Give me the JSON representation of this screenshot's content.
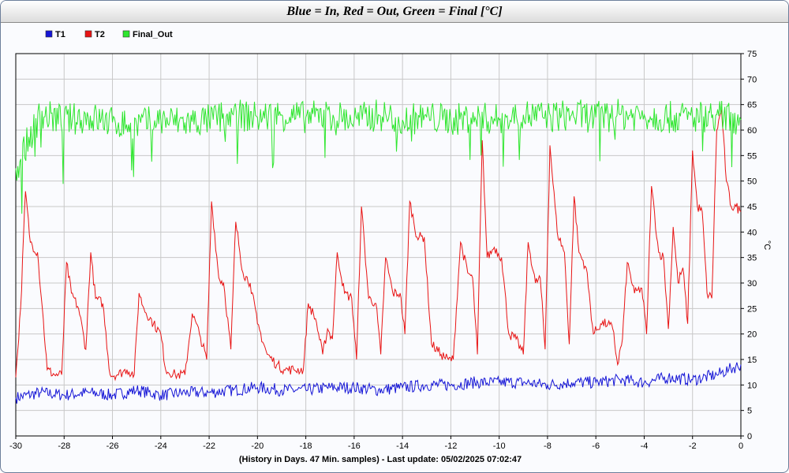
{
  "chart_data": {
    "type": "line",
    "title": "Blue = In,  Red = Out, Green = Final [°C]",
    "xlabel": "(History in Days. 47 Min. samples) - Last update: 05/02/2025 07:02:47",
    "ylabel": "°C",
    "xlim": [
      -30,
      0
    ],
    "ylim": [
      0,
      75
    ],
    "x_ticks": [
      -30,
      -28,
      -26,
      -24,
      -22,
      -20,
      -18,
      -16,
      -14,
      -12,
      -10,
      -8,
      -6,
      -4,
      -2,
      0
    ],
    "y_ticks": [
      0,
      5,
      10,
      15,
      20,
      25,
      30,
      35,
      40,
      45,
      50,
      55,
      60,
      65,
      70,
      75
    ],
    "grid": true,
    "legend_position": "top-left",
    "series": [
      {
        "name": "T1",
        "color": "#1515d6",
        "points": [
          [
            -30,
            7.5
          ],
          [
            -29,
            8.5
          ],
          [
            -28,
            8.0
          ],
          [
            -27,
            8.5
          ],
          [
            -26,
            8.0
          ],
          [
            -25,
            9.0
          ],
          [
            -24,
            8.0
          ],
          [
            -23,
            8.5
          ],
          [
            -22,
            8.5
          ],
          [
            -21,
            9.0
          ],
          [
            -20,
            9.5
          ],
          [
            -19,
            9.0
          ],
          [
            -18,
            9.0
          ],
          [
            -17,
            9.5
          ],
          [
            -16,
            9.5
          ],
          [
            -15,
            9.0
          ],
          [
            -14,
            9.5
          ],
          [
            -13,
            10.0
          ],
          [
            -12,
            10.0
          ],
          [
            -11,
            10.5
          ],
          [
            -10,
            10.5
          ],
          [
            -9,
            10.5
          ],
          [
            -8,
            10.0
          ],
          [
            -7,
            10.5
          ],
          [
            -6,
            10.5
          ],
          [
            -5,
            11.0
          ],
          [
            -4,
            10.5
          ],
          [
            -3,
            11.5
          ],
          [
            -2,
            11.0
          ],
          [
            -1,
            12.0
          ],
          [
            -0.5,
            13.0
          ],
          [
            0,
            14.0
          ]
        ]
      },
      {
        "name": "T2",
        "color": "#e81414",
        "points": [
          [
            -30,
            11.5
          ],
          [
            -29.8,
            25
          ],
          [
            -29.6,
            48
          ],
          [
            -29.4,
            38
          ],
          [
            -29.1,
            36
          ],
          [
            -28.9,
            25
          ],
          [
            -28.7,
            13
          ],
          [
            -28.4,
            12
          ],
          [
            -28.1,
            12
          ],
          [
            -27.9,
            34
          ],
          [
            -27.7,
            28
          ],
          [
            -27.4,
            25
          ],
          [
            -27.1,
            17
          ],
          [
            -26.9,
            36
          ],
          [
            -26.7,
            27
          ],
          [
            -26.4,
            26
          ],
          [
            -26.1,
            12
          ],
          [
            -25.8,
            12
          ],
          [
            -25.4,
            13
          ],
          [
            -25.1,
            12
          ],
          [
            -24.9,
            28
          ],
          [
            -24.7,
            25
          ],
          [
            -24.3,
            22
          ],
          [
            -24.0,
            20
          ],
          [
            -23.8,
            13
          ],
          [
            -23.4,
            12
          ],
          [
            -23.0,
            12
          ],
          [
            -22.7,
            24
          ],
          [
            -22.4,
            20
          ],
          [
            -22.1,
            15
          ],
          [
            -21.9,
            46
          ],
          [
            -21.6,
            31
          ],
          [
            -21.4,
            30
          ],
          [
            -21.1,
            17
          ],
          [
            -20.9,
            42
          ],
          [
            -20.6,
            32
          ],
          [
            -20.3,
            30
          ],
          [
            -20.0,
            22
          ],
          [
            -19.6,
            16
          ],
          [
            -19.2,
            14
          ],
          [
            -18.9,
            13
          ],
          [
            -18.5,
            13
          ],
          [
            -18.1,
            13
          ],
          [
            -17.9,
            26
          ],
          [
            -17.6,
            23
          ],
          [
            -17.3,
            16
          ],
          [
            -17.1,
            21
          ],
          [
            -16.9,
            19
          ],
          [
            -16.7,
            36
          ],
          [
            -16.4,
            28
          ],
          [
            -16.1,
            27
          ],
          [
            -15.9,
            15
          ],
          [
            -15.7,
            45
          ],
          [
            -15.4,
            27
          ],
          [
            -15.1,
            26
          ],
          [
            -14.9,
            16
          ],
          [
            -14.7,
            35
          ],
          [
            -14.4,
            28
          ],
          [
            -14.1,
            28
          ],
          [
            -13.9,
            20
          ],
          [
            -13.7,
            46
          ],
          [
            -13.4,
            39
          ],
          [
            -13.1,
            39
          ],
          [
            -12.8,
            18
          ],
          [
            -12.4,
            16
          ],
          [
            -12.1,
            15
          ],
          [
            -11.9,
            15
          ],
          [
            -11.6,
            38
          ],
          [
            -11.3,
            32
          ],
          [
            -11.1,
            31
          ],
          [
            -10.9,
            16
          ],
          [
            -10.7,
            58
          ],
          [
            -10.5,
            35
          ],
          [
            -10.2,
            37
          ],
          [
            -9.9,
            35
          ],
          [
            -9.6,
            20
          ],
          [
            -9.3,
            19
          ],
          [
            -9.0,
            16
          ],
          [
            -8.8,
            38
          ],
          [
            -8.5,
            30
          ],
          [
            -8.3,
            31
          ],
          [
            -8.1,
            17
          ],
          [
            -7.9,
            57
          ],
          [
            -7.6,
            40
          ],
          [
            -7.3,
            36
          ],
          [
            -7.1,
            18
          ],
          [
            -6.9,
            47
          ],
          [
            -6.7,
            36
          ],
          [
            -6.4,
            33
          ],
          [
            -6.1,
            20
          ],
          [
            -5.8,
            22
          ],
          [
            -5.5,
            22
          ],
          [
            -5.3,
            21
          ],
          [
            -5.1,
            14
          ],
          [
            -4.9,
            19
          ],
          [
            -4.7,
            34
          ],
          [
            -4.4,
            28
          ],
          [
            -4.1,
            29
          ],
          [
            -3.9,
            20
          ],
          [
            -3.7,
            49
          ],
          [
            -3.4,
            36
          ],
          [
            -3.2,
            35
          ],
          [
            -3.0,
            21
          ],
          [
            -2.8,
            41
          ],
          [
            -2.6,
            30
          ],
          [
            -2.4,
            33
          ],
          [
            -2.2,
            22
          ],
          [
            -2.0,
            56
          ],
          [
            -1.8,
            45
          ],
          [
            -1.6,
            44
          ],
          [
            -1.4,
            28
          ],
          [
            -1.2,
            27
          ],
          [
            -1.0,
            60
          ],
          [
            -0.8,
            64
          ],
          [
            -0.6,
            50
          ],
          [
            -0.4,
            45
          ],
          [
            -0.2,
            45
          ],
          [
            0,
            44
          ]
        ]
      },
      {
        "name": "Final_Out",
        "color": "#2ee62e",
        "points": [
          [
            -30,
            52.5
          ],
          [
            -29,
            63
          ],
          [
            -28,
            62
          ],
          [
            -27,
            62.5
          ],
          [
            -26,
            61.5
          ],
          [
            -25,
            61
          ],
          [
            -24,
            62
          ],
          [
            -23,
            61.5
          ],
          [
            -22,
            62
          ],
          [
            -21,
            63
          ],
          [
            -20,
            62.5
          ],
          [
            -19,
            63
          ],
          [
            -18,
            62.5
          ],
          [
            -17,
            63
          ],
          [
            -16,
            62
          ],
          [
            -15,
            63
          ],
          [
            -14,
            62
          ],
          [
            -13,
            62.5
          ],
          [
            -12,
            62
          ],
          [
            -11,
            62.5
          ],
          [
            -10,
            62
          ],
          [
            -9,
            63
          ],
          [
            -8,
            62.5
          ],
          [
            -7,
            63
          ],
          [
            -6,
            62.5
          ],
          [
            -5,
            63
          ],
          [
            -4,
            63
          ],
          [
            -3,
            62.5
          ],
          [
            -2,
            62.5
          ],
          [
            -1,
            63
          ],
          [
            0,
            62
          ]
        ]
      }
    ]
  }
}
